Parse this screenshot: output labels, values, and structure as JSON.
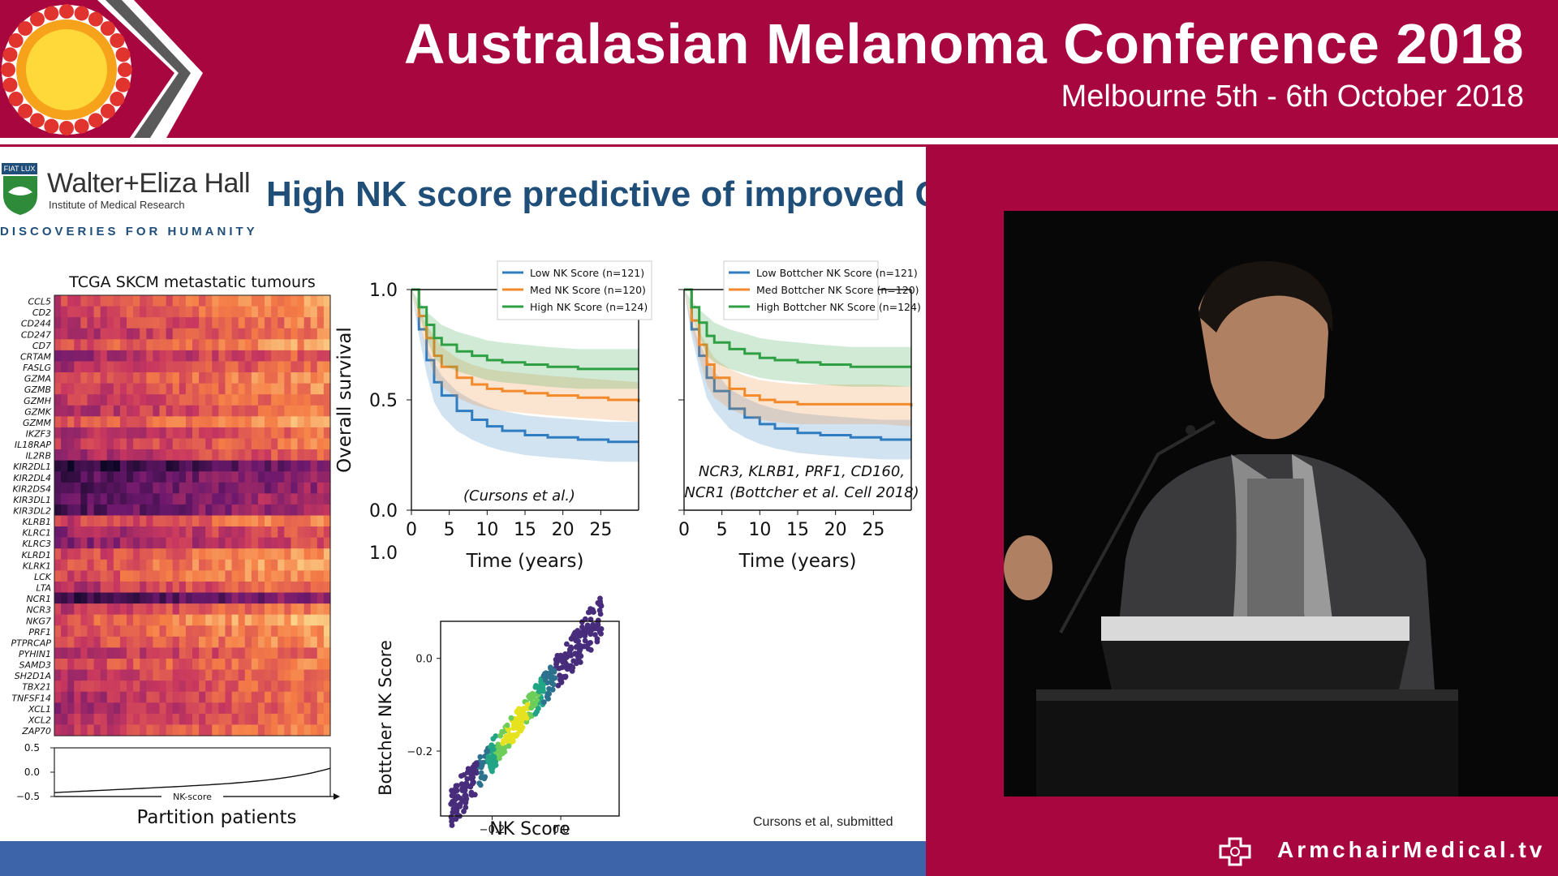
{
  "header": {
    "title": "Australasian Melanoma Conference 2018",
    "subtitle": "Melbourne 5th - 6th October 2018"
  },
  "slide": {
    "title": "High NK score predictive of improved OS",
    "logo": {
      "motto": "FIAT LUX",
      "name": "Walter+Eliza Hall",
      "institute": "Institute of Medical Research",
      "tagline": "DISCOVERIES FOR HUMANITY"
    },
    "citation": "Cursons et al, submitted"
  },
  "branding": {
    "name": "ArmchairMedical.tv"
  },
  "colors": {
    "brand": "#a8063f",
    "title": "#1f4e79",
    "low": "#2f7cc0",
    "med": "#f28a2b",
    "high": "#2ea043"
  },
  "chart_data": [
    {
      "type": "heatmap",
      "title": "TCGA SKCM metastatic tumours",
      "xlabel": "Partition patients",
      "genes": [
        "CCL5",
        "CD2",
        "CD244",
        "CD247",
        "CD7",
        "CRTAM",
        "FASLG",
        "GZMA",
        "GZMB",
        "GZMH",
        "GZMK",
        "GZMM",
        "IKZF3",
        "IL18RAP",
        "IL2RB",
        "KIR2DL1",
        "KIR2DL4",
        "KIR2DS4",
        "KIR3DL1",
        "KIR3DL2",
        "KLRB1",
        "KLRC1",
        "KLRC3",
        "KLRD1",
        "KLRK1",
        "LCK",
        "LTA",
        "NCR1",
        "NCR3",
        "NKG7",
        "PRF1",
        "PTPRCAP",
        "PYHIN1",
        "SAMD3",
        "SH2D1A",
        "TBX21",
        "TNFSF14",
        "XCL1",
        "XCL2",
        "ZAP70"
      ],
      "row_intensity": [
        0.72,
        0.7,
        0.66,
        0.62,
        0.74,
        0.56,
        0.6,
        0.72,
        0.68,
        0.66,
        0.62,
        0.76,
        0.6,
        0.64,
        0.58,
        0.2,
        0.32,
        0.3,
        0.36,
        0.34,
        0.7,
        0.54,
        0.5,
        0.72,
        0.76,
        0.74,
        0.62,
        0.26,
        0.64,
        0.8,
        0.74,
        0.72,
        0.6,
        0.7,
        0.64,
        0.62,
        0.6,
        0.58,
        0.6,
        0.66
      ],
      "score_panel": {
        "label": "NK-score",
        "yticks": [
          "0.5",
          "0.0",
          "−0.5"
        ],
        "ylim": [
          -0.5,
          0.5
        ],
        "trend": [
          -0.42,
          0.08
        ]
      }
    },
    {
      "type": "line",
      "title": "",
      "xlabel": "Time (years)",
      "ylabel": "Overall survival",
      "xticks": [
        "0",
        "5",
        "10",
        "15",
        "20",
        "25"
      ],
      "yticks": [
        "1.0",
        "0.5",
        "0.0"
      ],
      "extra_tick": "1.0",
      "xlim": [
        0,
        30
      ],
      "ylim": [
        0,
        1
      ],
      "annotation": "(Cursons et al.)",
      "series": [
        {
          "name": "Low NK Score (n=121)",
          "x": [
            0,
            1,
            2,
            3,
            4,
            6,
            8,
            10,
            12,
            15,
            18,
            22,
            26,
            30
          ],
          "values": [
            1,
            0.82,
            0.68,
            0.58,
            0.52,
            0.45,
            0.41,
            0.38,
            0.36,
            0.34,
            0.33,
            0.32,
            0.31,
            0.31
          ]
        },
        {
          "name": "Med NK Score (n=120)",
          "x": [
            0,
            1,
            2,
            3,
            4,
            6,
            8,
            10,
            12,
            15,
            18,
            22,
            26,
            30
          ],
          "values": [
            1,
            0.88,
            0.78,
            0.7,
            0.65,
            0.6,
            0.57,
            0.55,
            0.54,
            0.53,
            0.52,
            0.51,
            0.5,
            0.49
          ]
        },
        {
          "name": "High NK Score (n=124)",
          "x": [
            0,
            1,
            2,
            3,
            4,
            6,
            8,
            10,
            12,
            15,
            18,
            22,
            26,
            30
          ],
          "values": [
            1,
            0.92,
            0.84,
            0.78,
            0.75,
            0.72,
            0.7,
            0.68,
            0.67,
            0.66,
            0.65,
            0.64,
            0.64,
            0.64
          ]
        }
      ]
    },
    {
      "type": "line",
      "title": "",
      "xlabel": "Time (years)",
      "ylabel": "",
      "xticks": [
        "0",
        "5",
        "10",
        "15",
        "20",
        "25"
      ],
      "xlim": [
        0,
        30
      ],
      "ylim": [
        0,
        1
      ],
      "annotation": [
        "NCR3, KLRB1, PRF1, CD160,",
        "NCR1 (Bottcher et al. Cell 2018)"
      ],
      "series": [
        {
          "name": "Low Bottcher NK Score (n=121)",
          "x": [
            0,
            1,
            2,
            3,
            4,
            6,
            8,
            10,
            12,
            15,
            18,
            22,
            26,
            30
          ],
          "values": [
            1,
            0.82,
            0.7,
            0.6,
            0.54,
            0.46,
            0.42,
            0.39,
            0.37,
            0.35,
            0.34,
            0.33,
            0.32,
            0.32
          ]
        },
        {
          "name": "Med Bottcher NK Score (n=120)",
          "x": [
            0,
            1,
            2,
            3,
            4,
            6,
            8,
            10,
            12,
            15,
            18,
            22,
            26,
            30
          ],
          "values": [
            1,
            0.86,
            0.75,
            0.66,
            0.6,
            0.55,
            0.52,
            0.5,
            0.49,
            0.48,
            0.48,
            0.48,
            0.48,
            0.47
          ]
        },
        {
          "name": "High Bottcher NK Score (n=124)",
          "x": [
            0,
            1,
            2,
            3,
            4,
            6,
            8,
            10,
            12,
            15,
            18,
            22,
            26,
            30
          ],
          "values": [
            1,
            0.92,
            0.85,
            0.79,
            0.76,
            0.73,
            0.71,
            0.69,
            0.68,
            0.67,
            0.66,
            0.65,
            0.65,
            0.65
          ]
        }
      ]
    },
    {
      "type": "scatter",
      "title": "",
      "xlabel": "NK Score",
      "ylabel": "Bottcher NK Score",
      "xticks": [
        "−0.2",
        "0.0"
      ],
      "yticks": [
        "0.0",
        "−0.2"
      ],
      "xlim": [
        -0.35,
        0.17
      ],
      "ylim": [
        -0.34,
        0.08
      ],
      "trend": {
        "slope": 0.95,
        "intercept": 0.0
      }
    }
  ]
}
